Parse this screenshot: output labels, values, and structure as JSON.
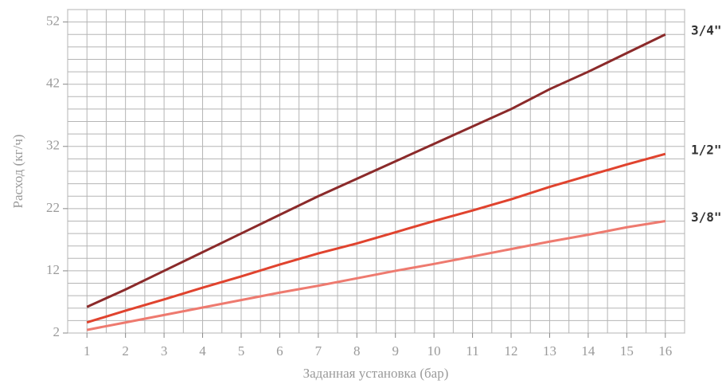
{
  "chart_data": {
    "type": "line",
    "x_label": "Заданная установка (бар)",
    "y_label": "Расход (кг/ч)",
    "x": [
      1,
      2,
      3,
      4,
      5,
      6,
      7,
      8,
      9,
      10,
      11,
      12,
      13,
      14,
      15,
      16
    ],
    "xlim": [
      0.5,
      16.5
    ],
    "xticks": [
      1,
      2,
      3,
      4,
      5,
      6,
      7,
      8,
      9,
      10,
      11,
      12,
      13,
      14,
      15,
      16
    ],
    "ylim": [
      2,
      54
    ],
    "yticks": [
      2,
      12,
      22,
      32,
      42,
      52
    ],
    "grid": true,
    "series": [
      {
        "name": "3/4\"",
        "color": "#8b2a2a",
        "values": [
          6.2,
          9,
          12,
          15,
          18,
          21,
          24,
          26.8,
          29.6,
          32.4,
          35.2,
          38,
          41.2,
          44,
          47,
          50
        ]
      },
      {
        "name": "1/2\"",
        "color": "#e0432e",
        "values": [
          3.7,
          5.6,
          7.4,
          9.3,
          11.1,
          13,
          14.8,
          16.4,
          18.2,
          20,
          21.7,
          23.5,
          25.5,
          27.3,
          29.1,
          30.8
        ]
      },
      {
        "name": "3/8\"",
        "color": "#ee7a6f",
        "values": [
          2.5,
          3.7,
          4.9,
          6.1,
          7.3,
          8.5,
          9.6,
          10.8,
          12,
          13.1,
          14.3,
          15.5,
          16.7,
          17.8,
          19,
          20
        ]
      }
    ]
  }
}
